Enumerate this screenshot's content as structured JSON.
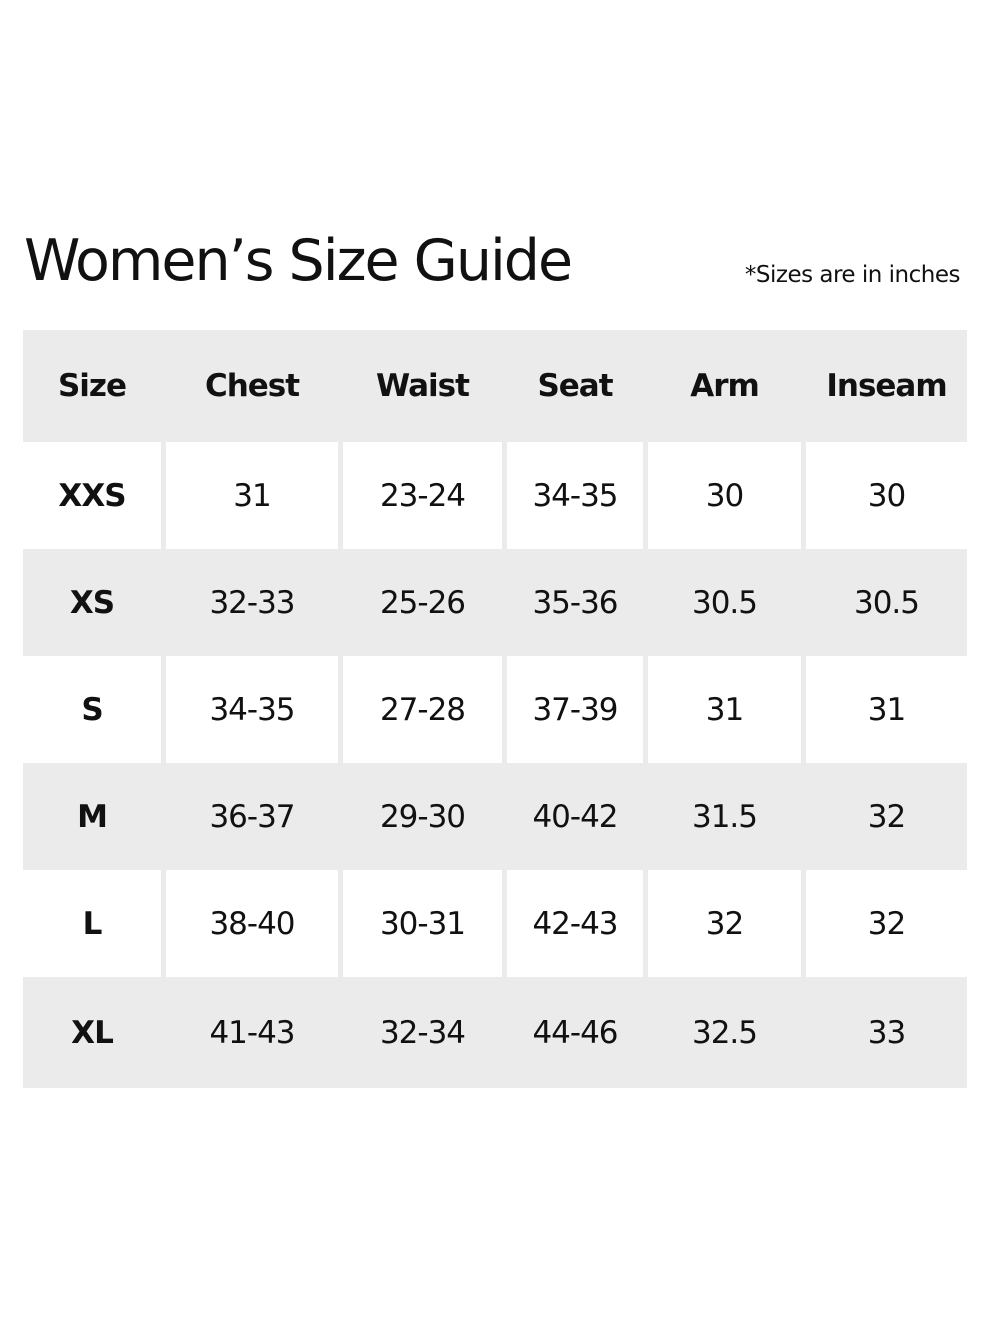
{
  "title": "Women’s Size Guide",
  "note": "*Sizes are in inches",
  "table": {
    "headers": [
      "Size",
      "Chest",
      "Waist",
      "Seat",
      "Arm",
      "Inseam"
    ],
    "rows": [
      [
        "XXS",
        "31",
        "23-24",
        "34-35",
        "30",
        "30"
      ],
      [
        "XS",
        "32-33",
        "25-26",
        "35-36",
        "30.5",
        "30.5"
      ],
      [
        "S",
        "34-35",
        "27-28",
        "37-39",
        "31",
        "31"
      ],
      [
        "M",
        "36-37",
        "29-30",
        "40-42",
        "31.5",
        "32"
      ],
      [
        "L",
        "38-40",
        "30-31",
        "42-43",
        "32",
        "32"
      ],
      [
        "XL",
        "41-43",
        "32-34",
        "44-46",
        "32.5",
        "33"
      ]
    ]
  },
  "colors": {
    "row_alt": "#ebebeb",
    "text": "#111111"
  }
}
